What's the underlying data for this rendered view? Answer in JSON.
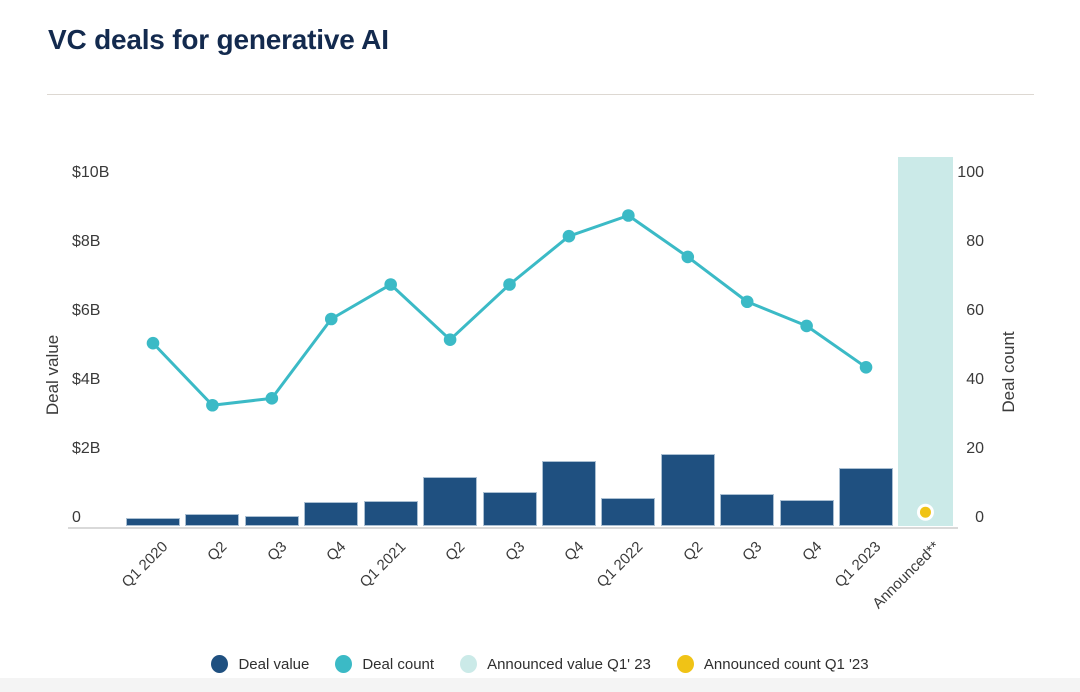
{
  "title": "VC deals for generative AI",
  "colors": {
    "title_navy": "#132A4E",
    "deal_value_bar": "#1F5080",
    "deal_count_line": "#3BBAC6",
    "announced_value_bar": "#CBEAE8",
    "announced_count_point": "#F0C316",
    "axis_text": "#3A3A3A",
    "axis_line": "#D9D9D9"
  },
  "chart_data": {
    "type": "combo_bar_line",
    "title": "VC deals for generative AI",
    "categories": [
      "Q1 2020",
      "Q2",
      "Q3",
      "Q4",
      "Q1 2021",
      "Q2",
      "Q3",
      "Q4",
      "Q1 2022",
      "Q2",
      "Q3",
      "Q4",
      "Q1 2023",
      "Announced**"
    ],
    "series": [
      {
        "name": "Deal value",
        "type": "bar",
        "axis": "left",
        "unit": "USD billions",
        "values": [
          0.23,
          0.35,
          0.29,
          0.7,
          0.72,
          1.42,
          1.0,
          1.88,
          0.81,
          2.1,
          0.93,
          0.75,
          1.68
        ]
      },
      {
        "name": "Deal count",
        "type": "line",
        "axis": "right",
        "values": [
          53,
          35,
          37,
          60,
          70,
          54,
          70,
          84,
          90,
          78,
          65,
          58,
          46
        ]
      },
      {
        "name": "Announced value Q1' 23",
        "type": "bar",
        "axis": "left",
        "unit": "USD billions",
        "category": "Announced**",
        "values": [
          10.7
        ]
      },
      {
        "name": "Announced count Q1 '23",
        "type": "point",
        "axis": "right",
        "category": "Announced**",
        "values": [
          4
        ]
      }
    ],
    "ylabel_left": "Deal value",
    "ylabel_right": "Deal count",
    "yticks_left": [
      "0",
      "$2B",
      "$4B",
      "$6B",
      "$8B",
      "$10B"
    ],
    "yticks_right": [
      "0",
      "20",
      "40",
      "60",
      "80",
      "100"
    ],
    "ylim_left": [
      0,
      10
    ],
    "ylim_right": [
      0,
      100
    ],
    "grid": false,
    "legend_position": "bottom"
  },
  "legend": {
    "items": [
      {
        "label": "Deal value",
        "color": "#1F5080"
      },
      {
        "label": "Deal count",
        "color": "#3BBAC6"
      },
      {
        "label": "Announced value Q1' 23",
        "color": "#CBEAE8"
      },
      {
        "label": "Announced count Q1 '23",
        "color": "#F0C316"
      }
    ]
  }
}
